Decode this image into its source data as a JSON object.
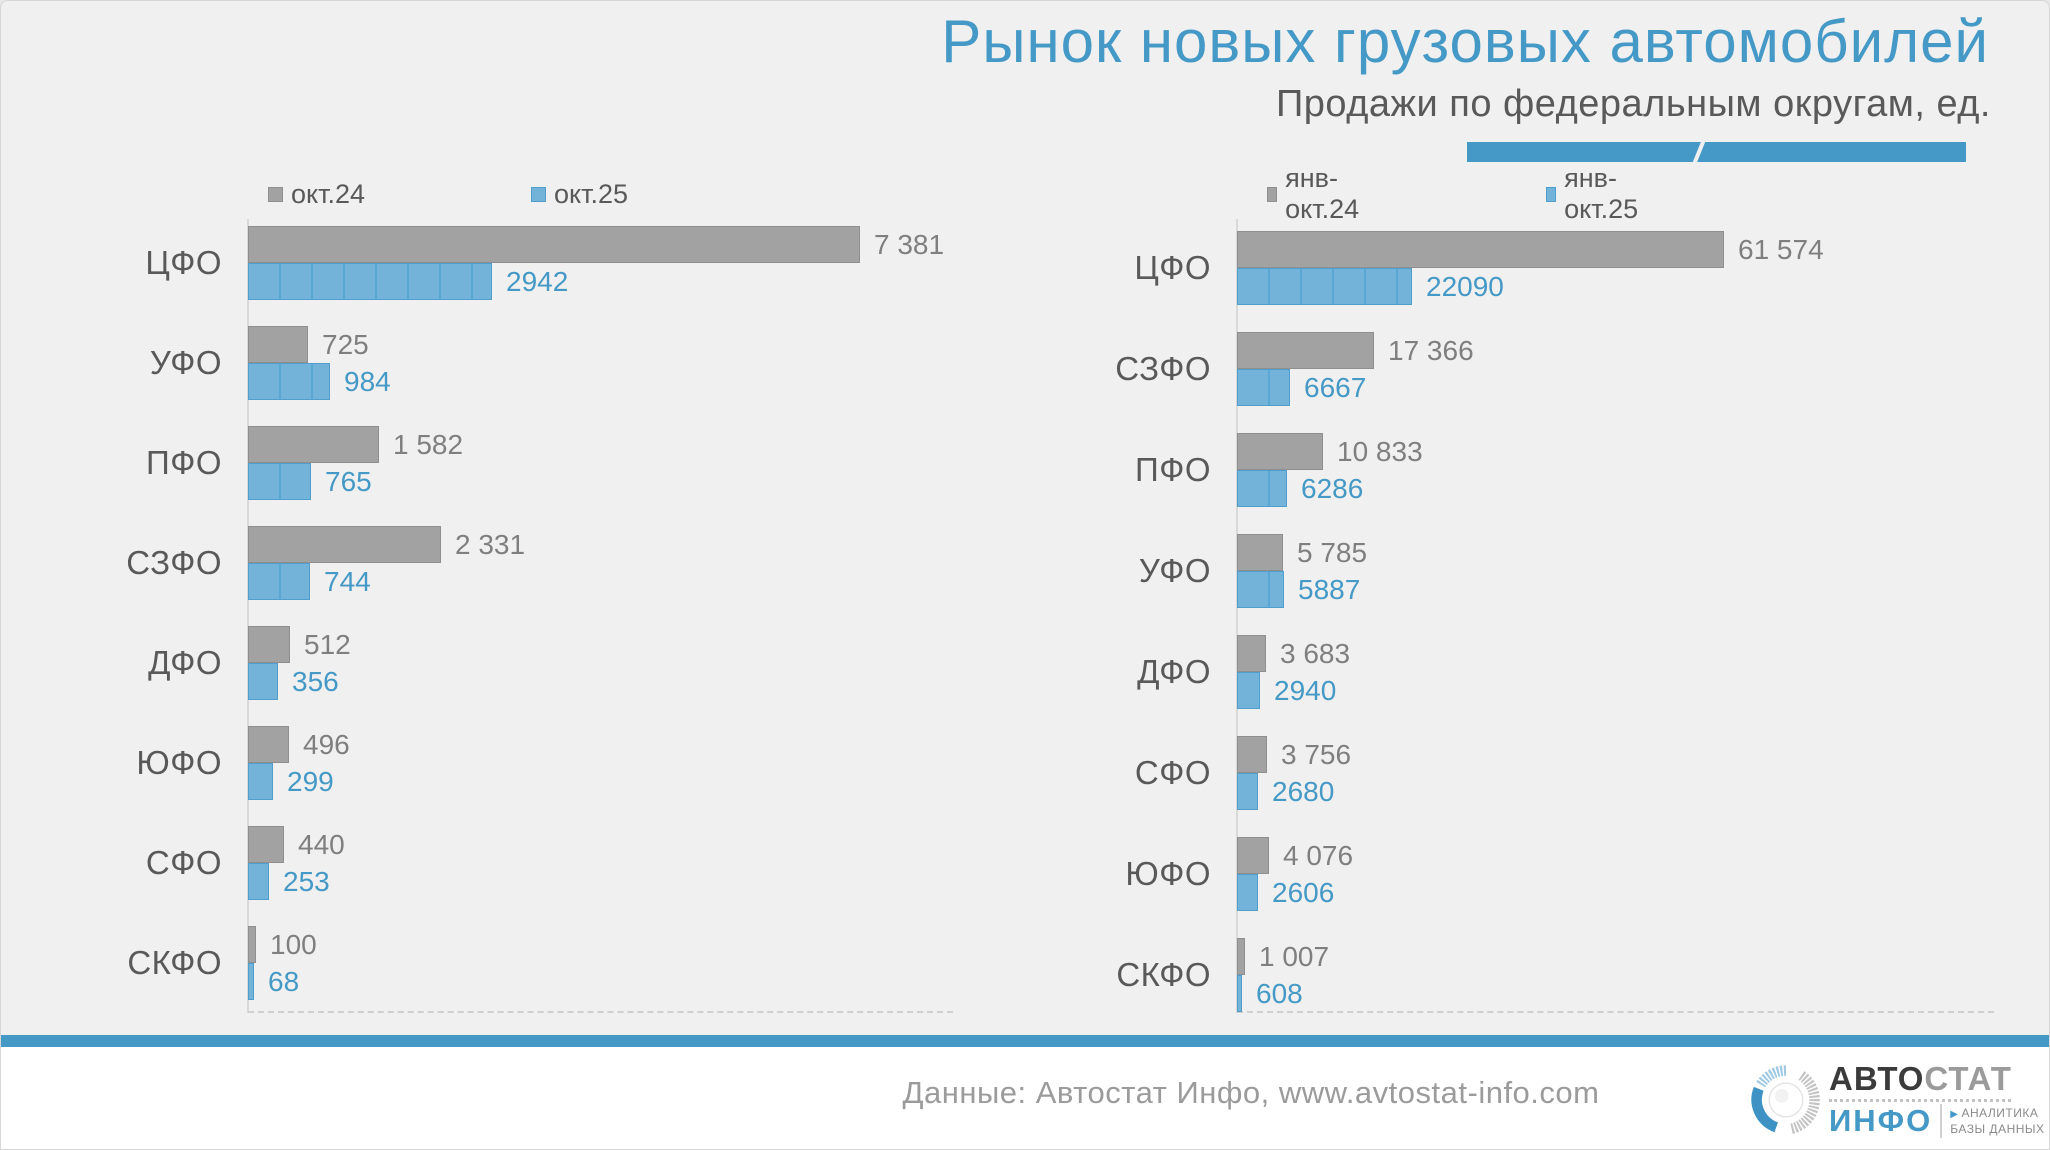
{
  "title": "Рынок новых грузовых автомобилей",
  "subtitle": "Продажи по федеральным округам, ед.",
  "footer": {
    "source_text": "Данные: Автостат Инфо, www.avtostat-info.com"
  },
  "logo": {
    "brand_top_bold": "АВТО",
    "brand_top_light": "СТАТ",
    "brand_bottom": "ИНФО",
    "tagline_triangle": "▶",
    "tagline_line1": "АНАЛИТИКА",
    "tagline_line2": "БАЗЫ ДАННЫХ",
    "icon": "swirl-circle-icon"
  },
  "colors": {
    "accent_blue": "#4599c6",
    "bar_gray": "#a2a2a2",
    "bar_gray_border": "#8f8f8f",
    "bar_blue": "#74b3d9",
    "bar_blue_border": "#4f9ecd",
    "text_dark": "#595959",
    "value_gray": "#7f7f7f",
    "value_blue": "#4599c6",
    "background": "#f0f0f0"
  },
  "chart_data": [
    {
      "type": "bar",
      "orientation": "horizontal",
      "title": "",
      "legend_position": "top",
      "grid": false,
      "value_labels": true,
      "axis_max": 8500,
      "legend": [
        "окт.24",
        "окт.25"
      ],
      "categories": [
        "ЦФО",
        "УФО",
        "ПФО",
        "СЗФО",
        "ДФО",
        "ЮФО",
        "СФО",
        "СКФО"
      ],
      "series": [
        {
          "name": "окт.24",
          "color": "#a2a2a2",
          "values": [
            7381,
            725,
            1582,
            2331,
            512,
            496,
            440,
            100
          ],
          "values_display": [
            "7 381",
            "725",
            "1 582",
            "2 331",
            "512",
            "496",
            "440",
            "100"
          ]
        },
        {
          "name": "окт.25",
          "color": "#74b3d9",
          "values": [
            2942,
            984,
            765,
            744,
            356,
            299,
            253,
            68
          ],
          "values_display": [
            "2942",
            "984",
            "765",
            "744",
            "356",
            "299",
            "253",
            "68"
          ]
        }
      ]
    },
    {
      "type": "bar",
      "orientation": "horizontal",
      "title": "",
      "legend_position": "top",
      "grid": false,
      "value_labels": true,
      "axis_max": 70000,
      "legend": [
        "янв-окт.24",
        "янв-окт.25"
      ],
      "categories": [
        "ЦФО",
        "СЗФО",
        "ПФО",
        "УФО",
        "ДФО",
        "СФО",
        "ЮФО",
        "СКФО"
      ],
      "series": [
        {
          "name": "янв-окт.24",
          "color": "#a2a2a2",
          "values": [
            61574,
            17366,
            10833,
            5785,
            3683,
            3756,
            4076,
            1007
          ],
          "values_display": [
            "61 574",
            "17 366",
            "10 833",
            "5 785",
            "3 683",
            "3 756",
            "4 076",
            "1 007"
          ]
        },
        {
          "name": "янв-окт.25",
          "color": "#74b3d9",
          "values": [
            22090,
            6667,
            6286,
            5887,
            2940,
            2680,
            2606,
            608
          ],
          "values_display": [
            "22090",
            "6667",
            "6286",
            "5887",
            "2940",
            "2680",
            "2606",
            "608"
          ]
        }
      ]
    }
  ]
}
